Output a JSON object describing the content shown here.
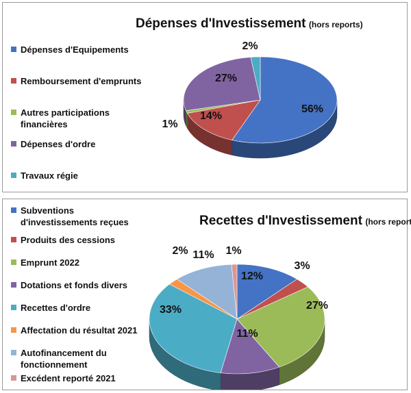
{
  "chart_data": [
    {
      "type": "pie",
      "title": "Dépenses d'Investissement",
      "subtitle": "(hors reports)",
      "categories": [
        "Dépenses d'Equipements",
        "Remboursement d'emprunts",
        "Autres participations financières",
        "Dépenses d'ordre",
        "Travaux régie"
      ],
      "values": [
        56,
        14,
        1,
        27,
        2
      ],
      "labels": [
        "56%",
        "14%",
        "1%",
        "27%",
        "2%"
      ],
      "colors": [
        "#4472C4",
        "#C0504D",
        "#9BBB59",
        "#8064A2",
        "#4BACC6"
      ],
      "legend": "left"
    },
    {
      "type": "pie",
      "title": "Recettes d'Investissement",
      "subtitle": "(hors reports)",
      "categories": [
        "Subventions d'investissements reçues",
        "Produits des cessions",
        "Emprunt 2022",
        "Dotations et fonds divers",
        "Recettes d'ordre",
        "Affectation du résultat 2021",
        "Autofinancement du fonctionnement",
        "Excédent reporté 2021"
      ],
      "values": [
        12,
        3,
        27,
        11,
        33,
        2,
        11,
        1
      ],
      "labels": [
        "12%",
        "3%",
        "27%",
        "11%",
        "33%",
        "2%",
        "11%",
        "1%"
      ],
      "colors": [
        "#4472C4",
        "#C0504D",
        "#9BBB59",
        "#8064A2",
        "#4BACC6",
        "#F79646",
        "#95B3D7",
        "#D99694"
      ],
      "legend": "left"
    }
  ]
}
